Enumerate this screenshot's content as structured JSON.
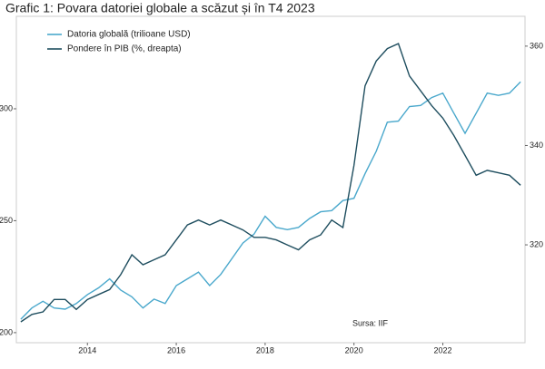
{
  "chart_data": {
    "type": "line",
    "title": "Grafic 1: Povara datoriei globale a scăzut și în T4 2023",
    "annotation": "Sursa: IIF",
    "legend": "top-left",
    "x": [
      2012.5,
      2012.75,
      2013,
      2013.25,
      2013.5,
      2013.75,
      2014,
      2014.25,
      2014.5,
      2014.75,
      2015,
      2015.25,
      2015.5,
      2015.75,
      2016,
      2016.25,
      2016.5,
      2016.75,
      2017,
      2017.25,
      2017.5,
      2017.75,
      2018,
      2018.25,
      2018.5,
      2018.75,
      2019,
      2019.25,
      2019.5,
      2019.75,
      2020,
      2020.25,
      2020.5,
      2020.75,
      2021,
      2021.25,
      2021.5,
      2021.75,
      2022,
      2022.25,
      2022.5,
      2022.75,
      2023,
      2023.25,
      2023.5,
      2023.75
    ],
    "xlim": [
      2012.4,
      2023.85
    ],
    "xticks": [
      2014,
      2016,
      2018,
      2020,
      2022
    ],
    "ylim": [
      195.5,
      341.3
    ],
    "yticks": [
      200,
      250,
      300
    ],
    "y2lim": [
      300.3,
      366
    ],
    "y2ticks": [
      320,
      340,
      360
    ],
    "series": [
      {
        "name": "Datoria globală (trilioane USD)",
        "color": "#4aa8cc",
        "values": [
          206,
          211,
          214,
          211,
          210.5,
          213,
          217,
          220,
          224,
          219,
          216,
          211,
          215,
          213,
          221,
          224,
          227,
          221,
          226,
          233,
          240,
          244,
          252,
          247,
          246,
          247,
          251,
          254,
          254.5,
          259,
          260,
          271,
          281,
          294,
          294.5,
          301,
          301.5,
          305,
          307,
          298,
          289,
          298,
          307,
          306,
          307,
          312
        ]
      },
      {
        "name": "Pondere în PIB (%, dreapta)",
        "color": "#1f4e5f",
        "axis": "y2",
        "values": [
          304.5,
          306,
          306.5,
          309,
          309,
          307,
          309,
          310,
          311,
          314,
          318,
          316,
          317,
          318,
          321,
          324,
          325,
          324,
          325,
          324,
          323,
          321.5,
          321.5,
          321,
          320,
          319,
          321,
          322,
          325,
          323.5,
          336,
          352,
          357,
          359.5,
          360.5,
          354,
          351,
          348,
          345.5,
          342,
          338,
          334,
          335,
          334.5,
          334,
          332
        ]
      }
    ]
  }
}
